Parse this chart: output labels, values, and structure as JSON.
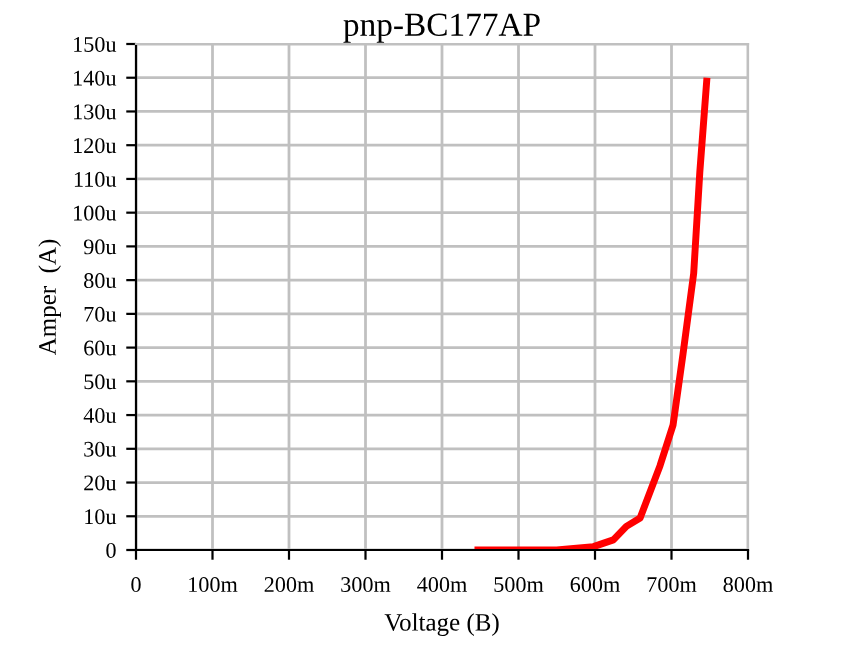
{
  "chart_data": {
    "type": "line",
    "title": "pnp-BC177AP",
    "xlabel": "Voltage (B)",
    "ylabel": "Amper  (A)",
    "x": [
      447,
      500,
      550,
      598,
      624,
      641,
      659,
      685,
      702,
      715,
      729,
      737,
      746
    ],
    "series": [
      {
        "color": "#ff0000",
        "values": [
          0,
          0,
          0,
          1,
          3,
          7,
          9.5,
          25,
          37,
          58,
          82,
          112,
          139
        ]
      }
    ],
    "xlim": [
      0,
      800
    ],
    "ylim": [
      0,
      150
    ],
    "xticks": [
      0,
      {
        "value": 100,
        "label": "100m"
      },
      {
        "value": 200,
        "label": "200m"
      },
      {
        "value": 300,
        "label": "300m"
      },
      {
        "value": 400,
        "label": "400m"
      },
      {
        "value": 500,
        "label": "500m"
      },
      {
        "value": 600,
        "label": "600m"
      },
      {
        "value": 700,
        "label": "700m"
      },
      {
        "value": 800,
        "label": "800m"
      }
    ],
    "yticks": [
      0,
      {
        "value": 10,
        "label": "10u"
      },
      {
        "value": 20,
        "label": "20u"
      },
      {
        "value": 30,
        "label": "30u"
      },
      {
        "value": 40,
        "label": "40u"
      },
      {
        "value": 50,
        "label": "50u"
      },
      {
        "value": 60,
        "label": "60u"
      },
      {
        "value": 70,
        "label": "70u"
      },
      {
        "value": 80,
        "label": "80u"
      },
      {
        "value": 90,
        "label": "90u"
      },
      {
        "value": 100,
        "label": "100u"
      },
      {
        "value": 110,
        "label": "110u"
      },
      {
        "value": 120,
        "label": "120u"
      },
      {
        "value": 130,
        "label": "130u"
      },
      {
        "value": 140,
        "label": "140u"
      },
      {
        "value": 150,
        "label": "150u"
      }
    ],
    "grid": true,
    "marker": "none",
    "line_style": "solid"
  }
}
